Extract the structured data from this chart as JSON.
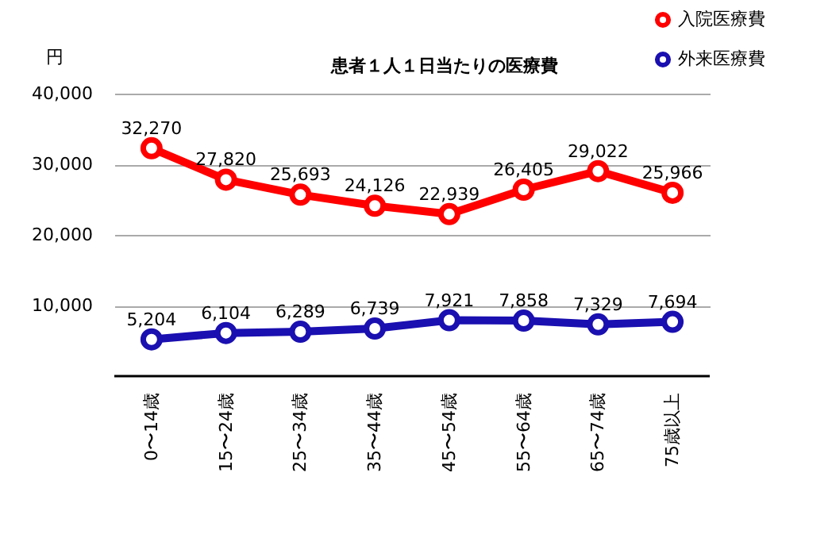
{
  "chart_data": {
    "type": "line",
    "title": "患者１人１日当たりの医療費",
    "ylabel": "円",
    "categories": [
      "0〜14歳",
      "15〜24歳",
      "25〜34歳",
      "35〜44歳",
      "45〜54歳",
      "55〜64歳",
      "65〜74歳",
      "75歳以上"
    ],
    "series": [
      {
        "name": "入院医療費",
        "color": "#ff0000",
        "values": [
          32270,
          27820,
          25693,
          24126,
          22939,
          26405,
          29022,
          25966
        ],
        "value_labels": [
          "32,270",
          "27,820",
          "25,693",
          "24,126",
          "22,939",
          "26,405",
          "29,022",
          "25,966"
        ]
      },
      {
        "name": "外来医療費",
        "color": "#1a0fb0",
        "values": [
          5204,
          6104,
          6289,
          6739,
          7921,
          7858,
          7329,
          7694
        ],
        "value_labels": [
          "5,204",
          "6,104",
          "6,289",
          "6,739",
          "7,921",
          "7,858",
          "7,329",
          "7,694"
        ]
      }
    ],
    "ylim": [
      0,
      40000
    ],
    "yticks": [
      {
        "value": 10000,
        "label": "10,000"
      },
      {
        "value": 20000,
        "label": "20,000"
      },
      {
        "value": 30000,
        "label": "30,000"
      },
      {
        "value": 40000,
        "label": "40,000"
      }
    ],
    "grid": "y",
    "legend": "top right",
    "marker": "circle"
  }
}
